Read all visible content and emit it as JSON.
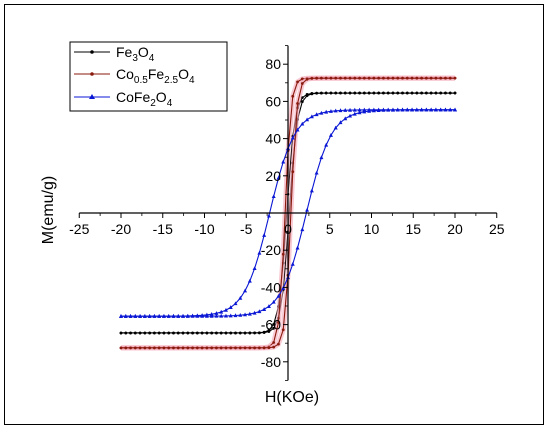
{
  "chart_data": {
    "type": "line",
    "xlabel": "H(KOe)",
    "ylabel": "M(emu/g)",
    "xlim": [
      -25,
      25
    ],
    "ylim": [
      -90,
      90
    ],
    "xticks": [
      -25,
      -20,
      -15,
      -10,
      -5,
      0,
      5,
      10,
      15,
      20,
      25
    ],
    "yticks": [
      -80,
      -60,
      -40,
      -20,
      20,
      40,
      60,
      80
    ],
    "grid": false,
    "legend_position": "top-left",
    "series": [
      {
        "name": "Fe3O4",
        "label_base": "Fe",
        "label_sub1": "3",
        "label_mid": "O",
        "label_sub2": "4",
        "color": "#000000",
        "marker": "circle",
        "Ms": 64.5,
        "Hc": 0.15,
        "a": 0.95,
        "x_range": [
          -20,
          20
        ]
      },
      {
        "name": "Co0.5Fe2.5O4",
        "label_base": "Co",
        "label_sub1": "0.5",
        "label_mid": "Fe",
        "label_sub2": "2.5",
        "label_tail": "O",
        "label_sub3": "4",
        "color": "#8b1a0e",
        "highlight": "#f4a6b8",
        "marker": "circle",
        "Ms": 72.5,
        "Hc": 0.35,
        "a": 0.7,
        "x_range": [
          -20,
          20
        ]
      },
      {
        "name": "CoFe2O4",
        "label_base": "CoFe",
        "label_sub1": "2",
        "label_mid": "O",
        "label_sub2": "4",
        "color": "#0a17d4",
        "marker": "triangle",
        "Ms": 55.5,
        "Hc": 2.2,
        "a": 3.0,
        "x_range": [
          -20,
          20
        ]
      }
    ]
  }
}
